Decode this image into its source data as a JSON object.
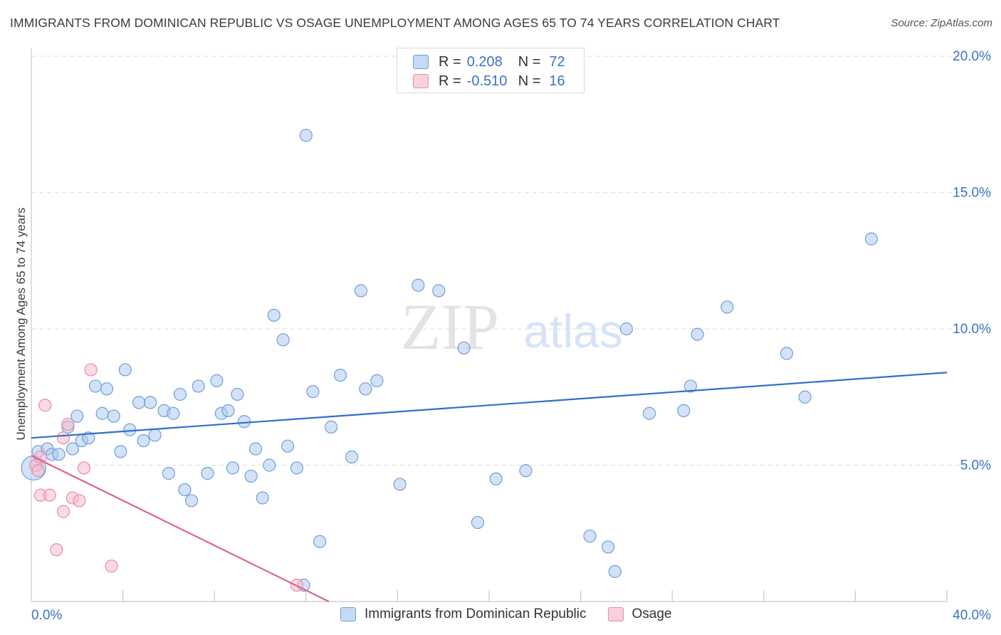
{
  "title": "IMMIGRANTS FROM DOMINICAN REPUBLIC VS OSAGE UNEMPLOYMENT AMONG AGES 65 TO 74 YEARS CORRELATION CHART",
  "source": "Source: ZipAtlas.com",
  "watermark": {
    "zip": "ZIP",
    "atlas": "atlas"
  },
  "legend": {
    "rows": [
      {
        "r_label": "R =",
        "r_value": "0.208",
        "n_label": "N =",
        "n_value": "72"
      },
      {
        "r_label": "R =",
        "r_value": "-0.510",
        "n_label": "N =",
        "n_value": "16"
      }
    ]
  },
  "colors": {
    "blue_fill": "#aecbee",
    "blue_stroke": "#6f9fda",
    "blue_line": "#2f6fce",
    "pink_fill": "#f6bccc",
    "pink_stroke": "#e98aa6",
    "pink_line": "#e0628e",
    "tick_label": "#3b73c4",
    "grid": "#dddddd"
  },
  "chart_data": {
    "type": "scatter",
    "xlabel": "",
    "ylabel": "Unemployment Among Ages 65 to 74 years",
    "xlim": [
      0,
      40
    ],
    "ylim": [
      0,
      20
    ],
    "x_tick_labels": [
      {
        "value": 0,
        "label": "0.0%"
      },
      {
        "value": 40,
        "label": "40.0%"
      }
    ],
    "y_tick_labels": [
      {
        "value": 5,
        "label": "5.0%"
      },
      {
        "value": 10,
        "label": "10.0%"
      },
      {
        "value": 15,
        "label": "15.0%"
      },
      {
        "value": 20,
        "label": "20.0%"
      }
    ],
    "series": [
      {
        "name": "Immigrants from Dominican Republic",
        "color": "blue",
        "trend": {
          "x": [
            0,
            40
          ],
          "y": [
            6.0,
            8.4
          ]
        },
        "points": [
          [
            0.1,
            4.9
          ],
          [
            0.3,
            5.5
          ],
          [
            0.7,
            5.6
          ],
          [
            0.9,
            5.4
          ],
          [
            1.2,
            5.4
          ],
          [
            1.6,
            6.4
          ],
          [
            2.0,
            6.8
          ],
          [
            2.2,
            5.9
          ],
          [
            1.8,
            5.6
          ],
          [
            2.5,
            6.0
          ],
          [
            2.8,
            7.9
          ],
          [
            3.1,
            6.9
          ],
          [
            3.3,
            7.8
          ],
          [
            3.6,
            6.8
          ],
          [
            3.9,
            5.5
          ],
          [
            4.1,
            8.5
          ],
          [
            4.3,
            6.3
          ],
          [
            4.7,
            7.3
          ],
          [
            4.9,
            5.9
          ],
          [
            5.2,
            7.3
          ],
          [
            5.4,
            6.1
          ],
          [
            5.8,
            7.0
          ],
          [
            6.0,
            4.7
          ],
          [
            6.2,
            6.9
          ],
          [
            6.5,
            7.6
          ],
          [
            6.7,
            4.1
          ],
          [
            7.0,
            3.7
          ],
          [
            7.3,
            7.9
          ],
          [
            7.7,
            4.7
          ],
          [
            8.1,
            8.1
          ],
          [
            8.3,
            6.9
          ],
          [
            8.6,
            7.0
          ],
          [
            8.8,
            4.9
          ],
          [
            9.0,
            7.6
          ],
          [
            9.3,
            6.6
          ],
          [
            9.6,
            4.6
          ],
          [
            9.8,
            5.6
          ],
          [
            10.1,
            3.8
          ],
          [
            10.4,
            5.0
          ],
          [
            10.6,
            10.5
          ],
          [
            11.0,
            9.6
          ],
          [
            11.2,
            5.7
          ],
          [
            11.6,
            4.9
          ],
          [
            12.3,
            7.7
          ],
          [
            12.0,
            17.1
          ],
          [
            12.6,
            2.2
          ],
          [
            13.1,
            6.4
          ],
          [
            13.5,
            8.3
          ],
          [
            14.0,
            5.3
          ],
          [
            14.4,
            11.4
          ],
          [
            14.6,
            7.8
          ],
          [
            15.1,
            8.1
          ],
          [
            16.1,
            4.3
          ],
          [
            16.9,
            11.6
          ],
          [
            17.8,
            11.4
          ],
          [
            18.9,
            9.3
          ],
          [
            19.5,
            2.9
          ],
          [
            20.3,
            4.5
          ],
          [
            21.6,
            4.8
          ],
          [
            24.4,
            2.4
          ],
          [
            25.2,
            2.0
          ],
          [
            25.5,
            1.1
          ],
          [
            26.0,
            10.0
          ],
          [
            27.0,
            6.9
          ],
          [
            28.5,
            7.0
          ],
          [
            28.8,
            7.9
          ],
          [
            29.1,
            9.8
          ],
          [
            30.4,
            10.8
          ],
          [
            33.0,
            9.1
          ],
          [
            33.8,
            7.5
          ],
          [
            36.7,
            13.3
          ],
          [
            11.9,
            0.6
          ]
        ]
      },
      {
        "name": "Osage",
        "color": "pink",
        "trend": {
          "x": [
            0,
            13.0
          ],
          "y": [
            5.35,
            0.0
          ]
        },
        "points": [
          [
            0.2,
            5.0
          ],
          [
            0.4,
            5.3
          ],
          [
            0.4,
            3.9
          ],
          [
            0.6,
            7.2
          ],
          [
            0.8,
            3.9
          ],
          [
            1.1,
            1.9
          ],
          [
            1.4,
            6.0
          ],
          [
            1.4,
            3.3
          ],
          [
            1.6,
            6.5
          ],
          [
            1.8,
            3.8
          ],
          [
            2.1,
            3.7
          ],
          [
            2.3,
            4.9
          ],
          [
            2.6,
            8.5
          ],
          [
            3.5,
            1.3
          ],
          [
            11.6,
            0.6
          ],
          [
            0.3,
            4.8
          ]
        ]
      }
    ]
  },
  "bottom_legend": [
    {
      "label": "Immigrants from Dominican Republic",
      "color": "blue"
    },
    {
      "label": "Osage",
      "color": "pink"
    }
  ]
}
